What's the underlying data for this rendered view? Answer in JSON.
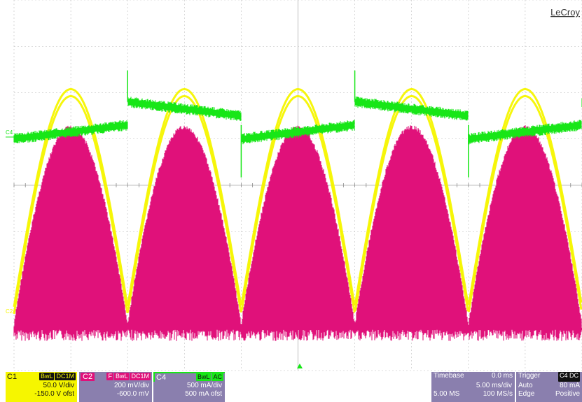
{
  "brand": "LeCroy",
  "markers": {
    "c4": "C4",
    "c2": "C2"
  },
  "colors": {
    "c1": "#f6f600",
    "c2": "#e0117a",
    "c4": "#17e617",
    "panel": "#8a7fae",
    "grid": "#bdbdbd"
  },
  "channels": {
    "c1": {
      "label": "C1",
      "tags": [
        "BwL",
        "DC1M"
      ],
      "scale": "50.0 V/div",
      "offset": "-150.0 V ofst"
    },
    "c2": {
      "label": "C2",
      "tags": [
        "F",
        "BwL",
        "DC1M"
      ],
      "scale": "200 mV/div",
      "offset": "-600.0 mV"
    },
    "c4": {
      "label": "C4",
      "tags": [
        "BwL",
        "AC"
      ],
      "scale": "500 mA/div",
      "offset": "500 mA ofst"
    }
  },
  "timebase": {
    "label": "Timebase",
    "delay": "0.0 ms",
    "scale": "5.00 ms/div",
    "samples": "5.00 MS",
    "rate": "100 MS/s"
  },
  "trigger": {
    "label": "Trigger",
    "tag": "C4 DC",
    "mode": "Auto",
    "level": "80 mA",
    "type": "Edge",
    "slope": "Positive"
  },
  "waveforms": {
    "period_ms": 10,
    "time_per_div_ms": 5,
    "c1": {
      "shape": "rectified-sine",
      "peak_div": 2.0,
      "base_div": -2.7
    },
    "c2": {
      "shape": "rectified-sine-noisy",
      "peak_div": 1.3,
      "base_div": -3.0
    },
    "c4": {
      "shape": "sawtooth-with-spikes",
      "high_div": 1.8,
      "low_div": 1.0
    }
  }
}
